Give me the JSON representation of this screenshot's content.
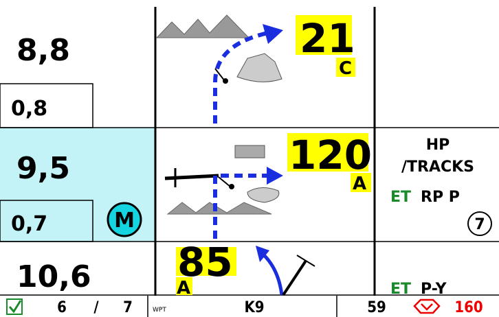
{
  "rows": [
    {
      "total": "8,8",
      "partial": "0,8",
      "heading": "21",
      "heading_letter": "C"
    },
    {
      "total": "9,5",
      "partial": "0,7",
      "badge": "M",
      "heading": "120",
      "heading_letter": "A",
      "notes": {
        "line1": "HP",
        "line2": "/TRACKS",
        "tag": "ET",
        "text": "RP P",
        "circled": "7"
      }
    },
    {
      "total": "10,6",
      "heading": "85",
      "heading_letter": "A",
      "notes": {
        "tag": "ET",
        "text": "P-Y"
      }
    }
  ],
  "status": {
    "current": "6",
    "separator": "/",
    "count": "7",
    "wpt_label": "WPT",
    "wpt": "K9",
    "distance": "59",
    "limit": "160"
  }
}
